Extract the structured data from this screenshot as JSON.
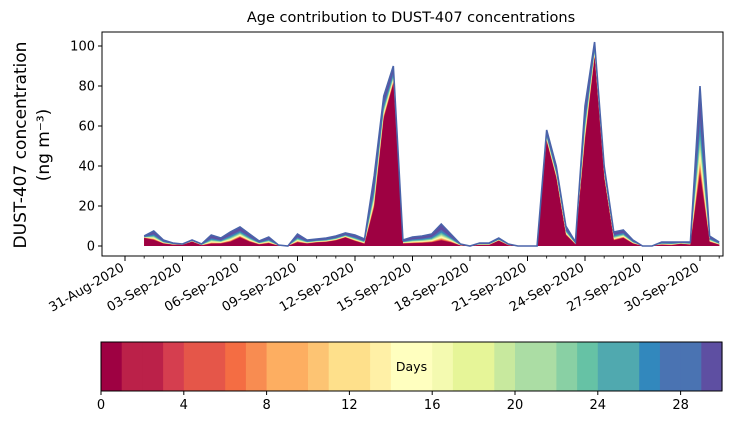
{
  "chart_data": {
    "type": "area",
    "stacked": true,
    "title": "Age contribution to DUST-407 concentrations",
    "ylabel_line1": "DUST-407 concentration",
    "ylabel_line2": "(ng m⁻³)",
    "xlabel": "",
    "ylim": [
      -5,
      107
    ],
    "y_ticks": [
      0,
      20,
      40,
      60,
      80,
      100
    ],
    "x_range_days": [
      -1.2,
      31.2
    ],
    "x_ticks": [
      {
        "day": 0,
        "label": "31-Aug-2020"
      },
      {
        "day": 3,
        "label": "03-Sep-2020"
      },
      {
        "day": 6,
        "label": "06-Sep-2020"
      },
      {
        "day": 9,
        "label": "09-Sep-2020"
      },
      {
        "day": 12,
        "label": "12-Sep-2020"
      },
      {
        "day": 15,
        "label": "15-Sep-2020"
      },
      {
        "day": 18,
        "label": "18-Sep-2020"
      },
      {
        "day": 21,
        "label": "21-Sep-2020"
      },
      {
        "day": 24,
        "label": "24-Sep-2020"
      },
      {
        "day": 27,
        "label": "27-Sep-2020"
      },
      {
        "day": 30,
        "label": "30-Sep-2020"
      }
    ],
    "x_days": [
      1,
      1.5,
      2,
      2.5,
      3,
      3.5,
      4,
      4.5,
      5,
      5.5,
      6,
      6.5,
      7,
      7.5,
      8,
      8.5,
      9,
      9.5,
      10,
      10.5,
      11,
      11.5,
      12,
      12.5,
      13,
      13.5,
      14,
      14.5,
      15,
      15.5,
      16,
      16.5,
      17,
      17.5,
      18,
      18.5,
      19,
      19.5,
      20,
      20.5,
      21,
      21.5,
      22,
      22.5,
      23,
      23.5,
      24,
      24.5,
      25,
      25.5,
      26,
      26.5,
      27,
      27.5,
      28,
      28.5,
      29,
      29.5,
      30,
      30.5,
      31
    ],
    "total": [
      5,
      7.5,
      3,
      1.5,
      1,
      3,
      1,
      5.5,
      4,
      7,
      9.5,
      6,
      2.5,
      4.5,
      0.5,
      0,
      6,
      3,
      3.5,
      4,
      5,
      6.5,
      5.5,
      3.5,
      35,
      75,
      90,
      3,
      4.5,
      5,
      6,
      11,
      6,
      1,
      0,
      1.5,
      1.5,
      4,
      1,
      0,
      0,
      0,
      58,
      40,
      10,
      2,
      70,
      102,
      40,
      7,
      8,
      3,
      0,
      0,
      2,
      2,
      2,
      2,
      80,
      5,
      2
    ],
    "core_fraction": [
      0.8,
      0.4,
      0.4,
      0.4,
      0.5,
      0.7,
      0.3,
      0.2,
      0.3,
      0.3,
      0.45,
      0.35,
      0.3,
      0.3,
      0.3,
      0,
      0.3,
      0.4,
      0.5,
      0.5,
      0.55,
      0.65,
      0.45,
      0.3,
      0.55,
      0.85,
      0.9,
      0.4,
      0.3,
      0.3,
      0.3,
      0.25,
      0.3,
      0.2,
      0,
      0.3,
      0.3,
      0.65,
      0.3,
      0,
      0,
      0,
      0.9,
      0.85,
      0.55,
      0.4,
      0.75,
      0.92,
      0.85,
      0.4,
      0.5,
      0.4,
      0,
      0,
      0.3,
      0.2,
      0.5,
      0.3,
      0.45,
      0.4,
      0.3
    ],
    "colorbar": {
      "label": "Days",
      "range": [
        0,
        30
      ],
      "levels": 30,
      "ticks": [
        0,
        4,
        8,
        12,
        16,
        20,
        24,
        28
      ],
      "colors": [
        "#9e0142",
        "#bb2149",
        "#d53e4f",
        "#e55649",
        "#f46d43",
        "#f88c51",
        "#fdae61",
        "#fdc473",
        "#fee08b",
        "#fff0a6",
        "#ffffbf",
        "#f4fab0",
        "#e6f598",
        "#c8e99e",
        "#abdda4",
        "#89d0a4",
        "#66c2a5",
        "#50a9af",
        "#3288bd",
        "#4a73b2",
        "#5e4fa2"
      ]
    }
  }
}
